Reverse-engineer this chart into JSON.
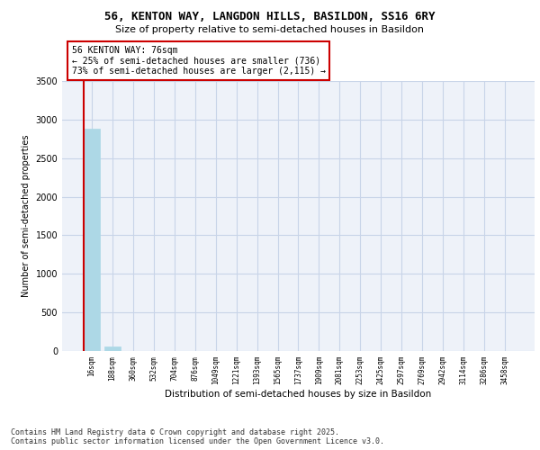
{
  "title_line1": "56, KENTON WAY, LANGDON HILLS, BASILDON, SS16 6RY",
  "title_line2": "Size of property relative to semi-detached houses in Basildon",
  "xlabel": "Distribution of semi-detached houses by size in Basildon",
  "ylabel": "Number of semi-detached properties",
  "footer": "Contains HM Land Registry data © Crown copyright and database right 2025.\nContains public sector information licensed under the Open Government Licence v3.0.",
  "categories": [
    "16sqm",
    "188sqm",
    "360sqm",
    "532sqm",
    "704sqm",
    "876sqm",
    "1049sqm",
    "1221sqm",
    "1393sqm",
    "1565sqm",
    "1737sqm",
    "1909sqm",
    "2081sqm",
    "2253sqm",
    "2425sqm",
    "2597sqm",
    "2769sqm",
    "2942sqm",
    "3114sqm",
    "3286sqm",
    "3458sqm"
  ],
  "values": [
    2886,
    55,
    0,
    0,
    0,
    0,
    0,
    0,
    0,
    0,
    0,
    0,
    0,
    0,
    0,
    0,
    0,
    0,
    0,
    0,
    0
  ],
  "bar_color": "#add8e6",
  "bar_edge_color": "#add8e6",
  "grid_color": "#c8d4e8",
  "bg_color": "#eef2f9",
  "annotation_text": "56 KENTON WAY: 76sqm\n← 25% of semi-detached houses are smaller (736)\n73% of semi-detached houses are larger (2,115) →",
  "annotation_box_color": "#cc0000",
  "property_bar_color": "#cc0000",
  "ylim": [
    0,
    3500
  ],
  "yticks": [
    0,
    500,
    1000,
    1500,
    2000,
    2500,
    3000,
    3500
  ]
}
